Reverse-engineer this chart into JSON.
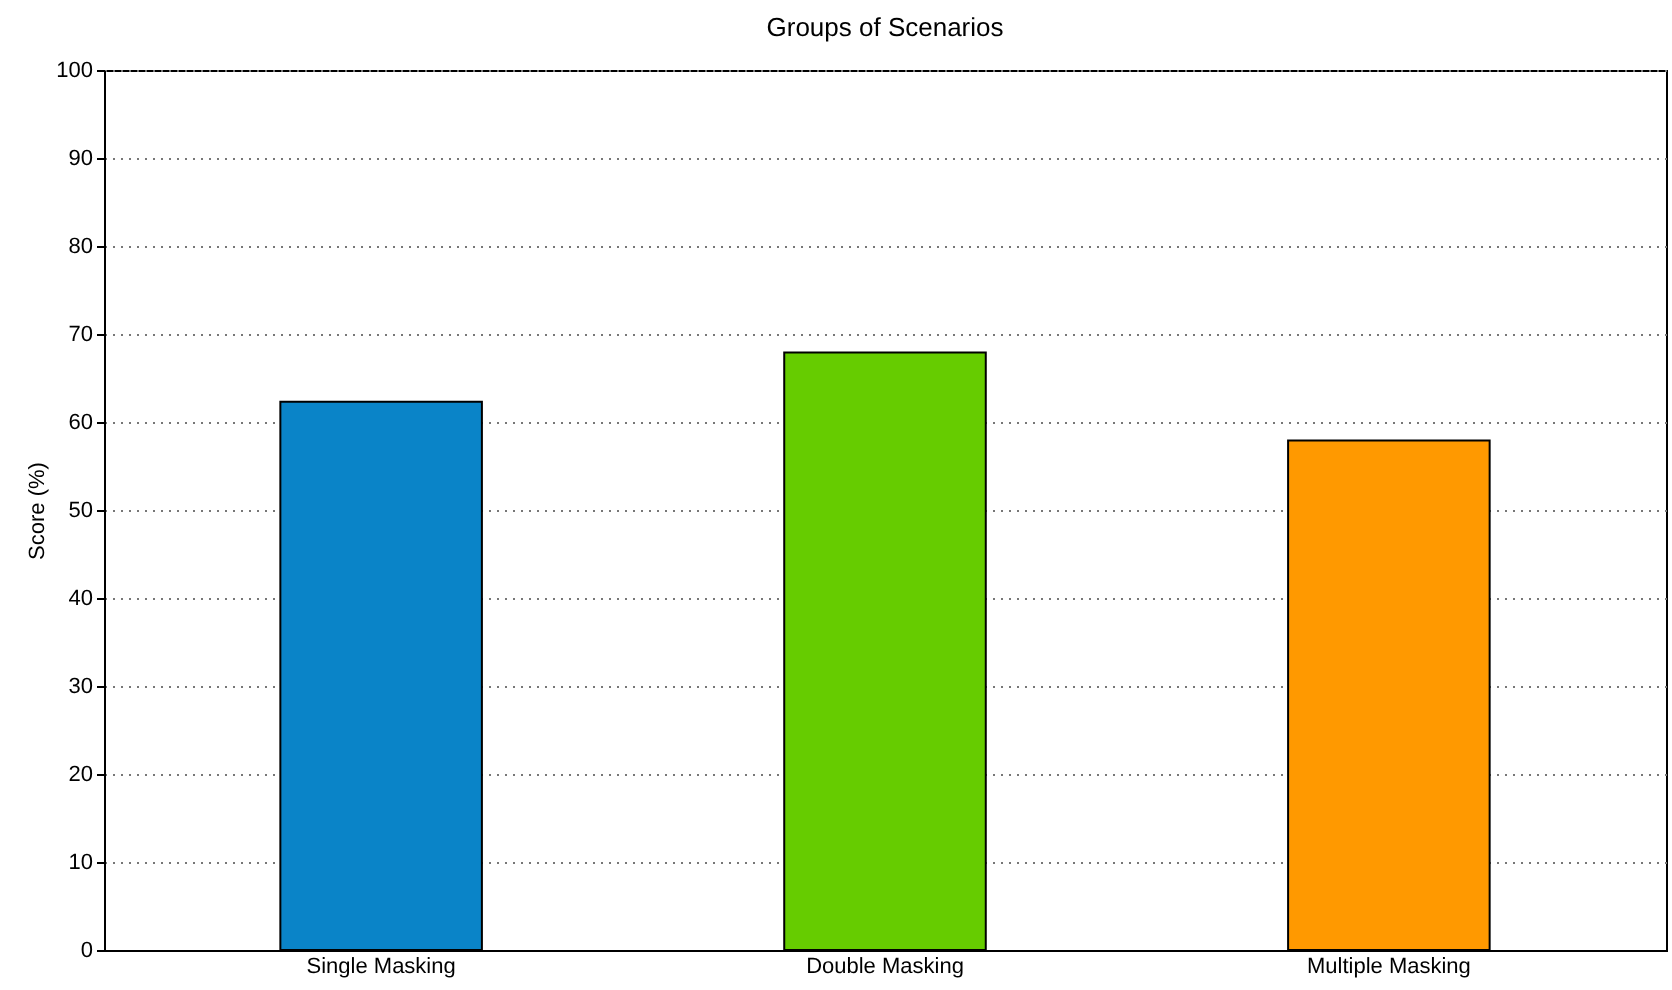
{
  "chart_data": {
    "type": "bar",
    "title": "Groups of Scenarios",
    "ylabel": "Score (%)",
    "categories": [
      "Single Masking",
      "Double Masking",
      "Multiple Masking"
    ],
    "values": [
      62.3,
      67.9,
      57.9
    ],
    "colors": [
      "#0a84c8",
      "#66cc00",
      "#ff9900"
    ],
    "ylim": [
      0,
      100
    ],
    "yticks": [
      0,
      10,
      20,
      30,
      40,
      50,
      60,
      70,
      80,
      90,
      100
    ],
    "grid": "y"
  }
}
